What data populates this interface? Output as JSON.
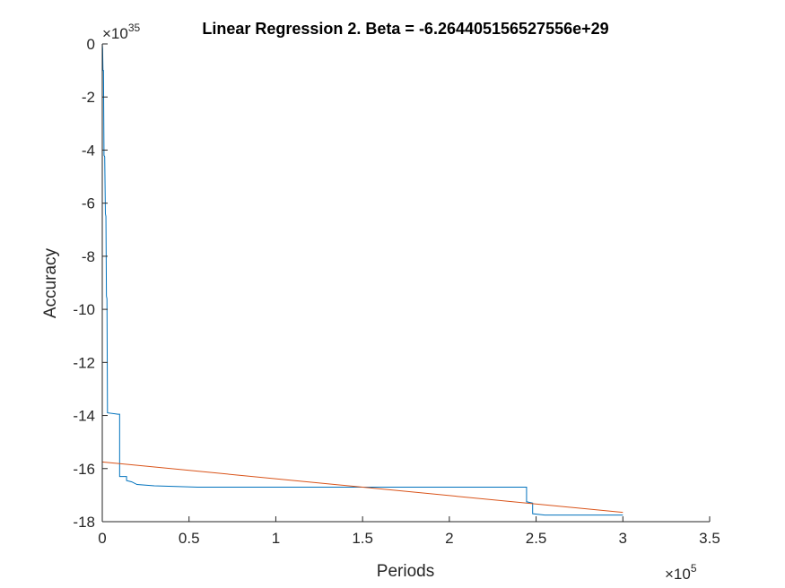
{
  "chart_data": {
    "type": "line",
    "title": "Linear Regression 2. Beta = -6.264405156527556e+29",
    "xlabel": "Periods",
    "ylabel": "Accuracy",
    "xlim": [
      0,
      350000
    ],
    "ylim": [
      -18,
      0
    ],
    "x_exponent_label": "×10",
    "x_exponent_power": "5",
    "y_exponent_label": "×10",
    "y_exponent_power": "35",
    "x_ticks": [
      {
        "value": 0,
        "label": "0"
      },
      {
        "value": 50000,
        "label": "0.5"
      },
      {
        "value": 100000,
        "label": "1"
      },
      {
        "value": 150000,
        "label": "1.5"
      },
      {
        "value": 200000,
        "label": "2"
      },
      {
        "value": 250000,
        "label": "2.5"
      },
      {
        "value": 300000,
        "label": "3"
      },
      {
        "value": 350000,
        "label": "3.5"
      }
    ],
    "y_ticks": [
      {
        "value": 0,
        "label": "0"
      },
      {
        "value": -2,
        "label": "-2"
      },
      {
        "value": -4,
        "label": "-4"
      },
      {
        "value": -6,
        "label": "-6"
      },
      {
        "value": -8,
        "label": "-8"
      },
      {
        "value": -10,
        "label": "-10"
      },
      {
        "value": -12,
        "label": "-12"
      },
      {
        "value": -14,
        "label": "-14"
      },
      {
        "value": -16,
        "label": "-16"
      },
      {
        "value": -18,
        "label": "-18"
      }
    ],
    "grid": false,
    "legend": "none",
    "series": [
      {
        "color": "#0072BD",
        "style": "step",
        "points": [
          [
            0,
            0
          ],
          [
            200,
            -0.2
          ],
          [
            400,
            -1.0
          ],
          [
            700,
            -1.0
          ],
          [
            1000,
            -4.2
          ],
          [
            1400,
            -4.25
          ],
          [
            1800,
            -6.4
          ],
          [
            2100,
            -6.5
          ],
          [
            2400,
            -9.5
          ],
          [
            2700,
            -9.6
          ],
          [
            3000,
            -13.9
          ],
          [
            9000,
            -13.95
          ],
          [
            10000,
            -13.95
          ],
          [
            10000,
            -16.3
          ],
          [
            14000,
            -16.3
          ],
          [
            14000,
            -16.45
          ],
          [
            17000,
            -16.5
          ],
          [
            20000,
            -16.6
          ],
          [
            30000,
            -16.65
          ],
          [
            55000,
            -16.7
          ],
          [
            100000,
            -16.7
          ],
          [
            244500,
            -16.7
          ],
          [
            244500,
            -17.25
          ],
          [
            248000,
            -17.3
          ],
          [
            248000,
            -17.7
          ],
          [
            255000,
            -17.75
          ],
          [
            300000,
            -17.75
          ]
        ]
      },
      {
        "color": "#D95319",
        "style": "line",
        "points": [
          [
            0,
            -15.75
          ],
          [
            300000,
            -17.65
          ]
        ]
      }
    ]
  }
}
